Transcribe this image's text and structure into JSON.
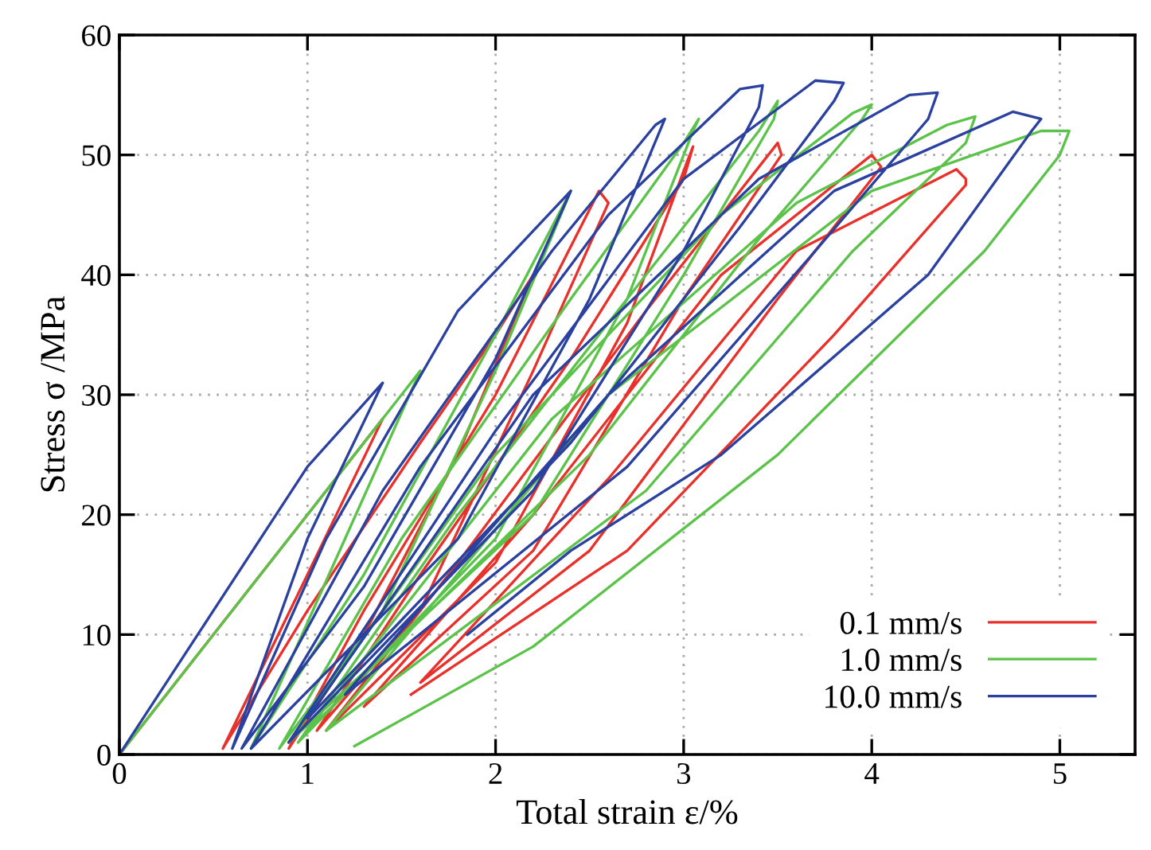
{
  "chart_data": {
    "type": "line",
    "xlabel": "Total strain ε/%",
    "ylabel": "Stress σ /MPa",
    "xlim": [
      0,
      5.4
    ],
    "ylim": [
      0,
      60
    ],
    "xticks": [
      0,
      1,
      2,
      3,
      4,
      5
    ],
    "yticks": [
      0,
      10,
      20,
      30,
      40,
      50,
      60
    ],
    "grid": true,
    "legend": "bottom right",
    "marker": "none",
    "line_style": "solid",
    "series": [
      {
        "name": "0.1 mm/s",
        "color": "#e8312a",
        "x": [
          0,
          0.5,
          1.0,
          1.4,
          1.0,
          0.55,
          1.0,
          1.6,
          2.0,
          2.2,
          1.8,
          1.3,
          0.9,
          1.3,
          2.0,
          2.55,
          2.6,
          2.2,
          1.6,
          1.05,
          1.6,
          2.4,
          3.0,
          3.05,
          3.02,
          2.7,
          2.0,
          1.1,
          1.8,
          2.8,
          3.5,
          3.52,
          3.0,
          2.2,
          1.3,
          2.2,
          3.2,
          4.0,
          4.05,
          3.5,
          2.5,
          1.6,
          2.6,
          3.6,
          4.45,
          4.5,
          4.5,
          3.8,
          2.7,
          1.55
        ],
        "values": [
          0,
          10,
          20,
          28,
          15,
          0.5,
          12,
          26,
          35,
          40,
          25,
          10,
          0.5,
          12,
          30,
          47,
          46,
          32,
          12,
          2,
          15,
          33,
          48,
          50.7,
          49.5,
          36,
          16,
          2,
          16,
          37,
          51,
          50,
          38,
          17,
          4,
          20,
          40,
          50,
          49,
          38,
          17,
          6,
          23,
          42,
          48.8,
          48,
          47.5,
          35,
          17,
          5
        ]
      },
      {
        "name": "1.0 mm/s",
        "color": "#5bc34a",
        "x": [
          0,
          0.6,
          1.2,
          1.6,
          1.2,
          0.7,
          1.3,
          2.0,
          2.4,
          2.0,
          1.4,
          0.85,
          1.5,
          2.4,
          3.0,
          3.08,
          3.05,
          2.7,
          2.0,
          0.95,
          1.8,
          2.8,
          3.4,
          3.5,
          3.48,
          3.0,
          2.2,
          0.9,
          2.0,
          3.2,
          3.9,
          4.0,
          3.95,
          3.4,
          2.5,
          1.0,
          2.3,
          3.6,
          4.4,
          4.55,
          4.5,
          3.9,
          2.8,
          1.1,
          2.6,
          4.0,
          4.9,
          5.05,
          5.0,
          4.6,
          3.5,
          2.2,
          1.25
        ],
        "values": [
          0,
          12,
          24,
          32,
          18,
          0.5,
          15,
          35,
          47,
          32,
          12,
          0.5,
          18,
          38,
          51,
          53,
          52,
          38,
          18,
          1,
          20,
          40,
          52,
          54.5,
          53,
          40,
          20,
          1,
          25,
          45,
          53.5,
          54.2,
          53,
          43,
          25,
          2,
          28,
          46,
          52.5,
          53.2,
          51,
          42,
          22,
          2,
          30,
          47,
          52,
          52,
          50,
          42,
          25,
          9,
          0.7
        ]
      },
      {
        "name": "10.0 mm/s",
        "color": "#2b41a0",
        "x": [
          0,
          0.5,
          1.0,
          1.4,
          1.0,
          0.6,
          1.1,
          1.8,
          2.4,
          2.0,
          1.3,
          0.65,
          1.4,
          2.3,
          2.85,
          2.9,
          2.5,
          1.8,
          0.7,
          1.6,
          2.6,
          3.3,
          3.42,
          3.4,
          3.0,
          2.2,
          0.9,
          2.0,
          3.0,
          3.7,
          3.85,
          3.8,
          3.3,
          2.4,
          1.0,
          2.2,
          3.4,
          4.2,
          4.35,
          4.3,
          3.7,
          2.7,
          1.2,
          2.6,
          3.8,
          4.75,
          4.9,
          4.85,
          4.3,
          3.2,
          2.4,
          1.85
        ],
        "values": [
          0,
          12,
          24,
          31,
          18,
          0.5,
          18,
          37,
          47,
          33,
          14,
          0.5,
          22,
          42,
          52.5,
          53,
          38,
          18,
          0.5,
          24,
          45,
          55.5,
          55.8,
          54,
          42,
          22,
          1,
          27,
          48,
          56.2,
          56,
          54.5,
          44,
          26,
          3,
          30,
          48,
          55,
          55.2,
          53,
          42,
          24,
          5,
          30,
          47,
          53.6,
          53,
          52,
          40,
          25,
          17,
          10
        ]
      }
    ]
  }
}
